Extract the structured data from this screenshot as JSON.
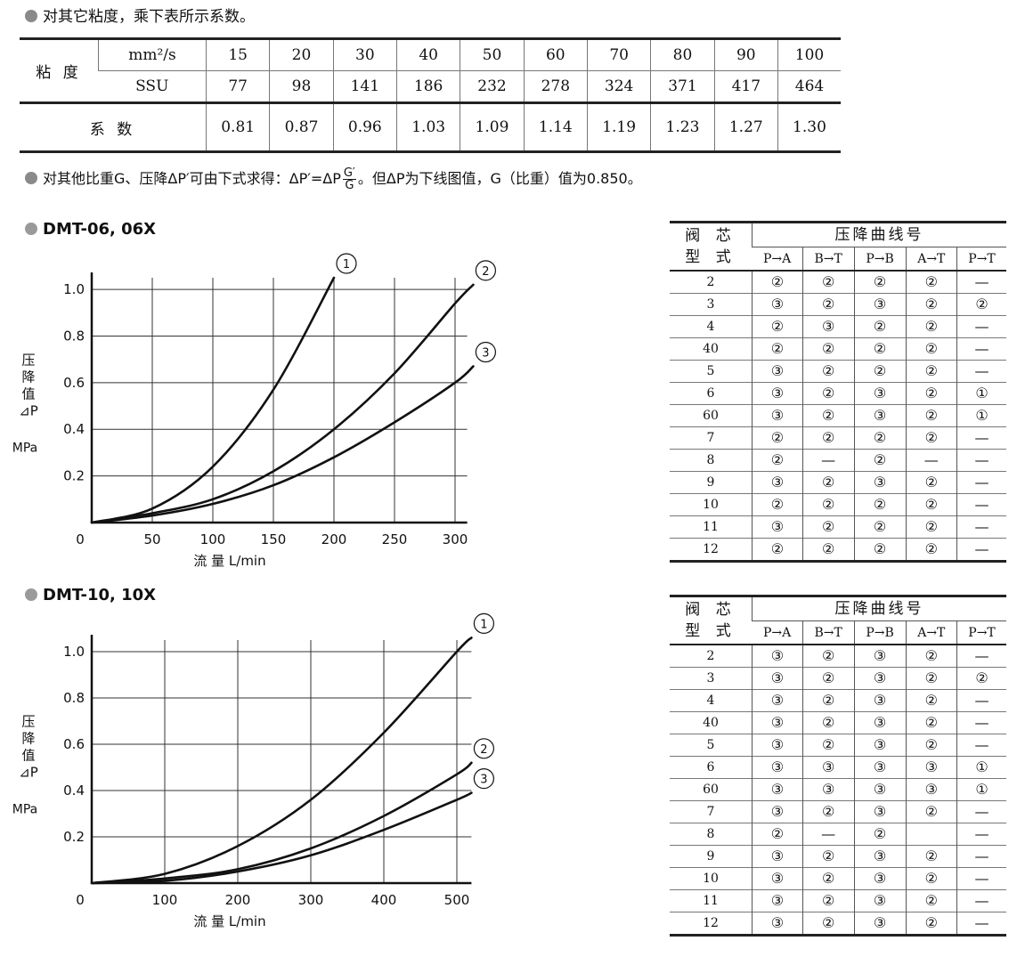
{
  "note_viscosity": "对其它粘度，乘下表所示系数。",
  "viscosity_table": {
    "viscosity_label": "粘 度",
    "unit_mm2s": "mm²/s",
    "unit_ssu": "SSU",
    "mm2s": [
      "15",
      "20",
      "30",
      "40",
      "50",
      "60",
      "70",
      "80",
      "90",
      "100"
    ],
    "ssu": [
      "77",
      "98",
      "141",
      "186",
      "232",
      "278",
      "324",
      "371",
      "417",
      "464"
    ],
    "coef_label": "系 数",
    "coef": [
      "0.81",
      "0.87",
      "0.96",
      "1.03",
      "1.09",
      "1.14",
      "1.19",
      "1.23",
      "1.27",
      "1.30"
    ]
  },
  "note_gravity": {
    "pre": "对其他比重G、压降ΔP′可由下式求得：ΔP′=ΔP",
    "frac_num": "G′",
    "frac_den": "G",
    "post": "。但ΔP为下线图值，G（比重）值为0.850。"
  },
  "chart_data": [
    {
      "type": "line",
      "title": "DMT-06, 06X",
      "xlabel": "流 量  L/min",
      "ylabel_lines": [
        "压",
        "降",
        "值",
        "⊿P"
      ],
      "ylabel_unit": "MPa",
      "origin_label": "0",
      "xlim": [
        0,
        310
      ],
      "ylim": [
        0,
        1.05
      ],
      "xticks": [
        50,
        100,
        150,
        200,
        250,
        300
      ],
      "yticks": [
        0.2,
        0.4,
        0.6,
        0.8,
        1.0
      ],
      "xtick_labels": [
        "50",
        "100",
        "150",
        "200",
        "250",
        "300"
      ],
      "ytick_labels": [
        "0.2",
        "0.4",
        "0.6",
        "0.8",
        "1.0"
      ],
      "grid": true,
      "series": [
        {
          "name": "①",
          "x": [
            0,
            50,
            100,
            150,
            200
          ],
          "y": [
            0,
            0.06,
            0.24,
            0.57,
            1.05
          ]
        },
        {
          "name": "②",
          "x": [
            0,
            50,
            100,
            150,
            200,
            250,
            300,
            315
          ],
          "y": [
            0,
            0.04,
            0.1,
            0.22,
            0.4,
            0.64,
            0.94,
            1.02
          ]
        },
        {
          "name": "③",
          "x": [
            0,
            50,
            100,
            150,
            200,
            250,
            300,
            315
          ],
          "y": [
            0,
            0.03,
            0.08,
            0.16,
            0.28,
            0.43,
            0.6,
            0.67
          ]
        }
      ]
    },
    {
      "type": "line",
      "title": "DMT-10, 10X",
      "xlabel": "流 量  L/min",
      "ylabel_lines": [
        "压",
        "降",
        "值",
        "⊿P"
      ],
      "ylabel_unit": "MPa",
      "origin_label": "0",
      "xlim": [
        0,
        520
      ],
      "ylim": [
        0,
        1.05
      ],
      "xticks": [
        100,
        200,
        300,
        400,
        500
      ],
      "yticks": [
        0.2,
        0.4,
        0.6,
        0.8,
        1.0
      ],
      "xtick_labels": [
        "100",
        "200",
        "300",
        "400",
        "500"
      ],
      "ytick_labels": [
        "0.2",
        "0.4",
        "0.6",
        "0.8",
        "1.0"
      ],
      "grid": true,
      "series": [
        {
          "name": "①",
          "x": [
            0,
            100,
            200,
            300,
            400,
            500,
            520
          ],
          "y": [
            0,
            0.04,
            0.16,
            0.36,
            0.65,
            1.0,
            1.06
          ]
        },
        {
          "name": "②",
          "x": [
            0,
            100,
            200,
            300,
            400,
            500,
            520
          ],
          "y": [
            0,
            0.02,
            0.06,
            0.15,
            0.29,
            0.47,
            0.52
          ]
        },
        {
          "name": "③",
          "x": [
            0,
            100,
            200,
            300,
            400,
            500,
            520
          ],
          "y": [
            0,
            0.01,
            0.05,
            0.12,
            0.23,
            0.36,
            0.39
          ]
        }
      ]
    }
  ],
  "spool_tables": [
    {
      "head_spool": [
        "阀 芯",
        "型 式"
      ],
      "head_curve": "压降曲线号",
      "columns": [
        "P→A",
        "B→T",
        "P→B",
        "A→T",
        "P→T"
      ],
      "rows": [
        {
          "type": "2",
          "vals": [
            "②",
            "②",
            "②",
            "②",
            "—"
          ]
        },
        {
          "type": "3",
          "vals": [
            "③",
            "②",
            "③",
            "②",
            "②"
          ]
        },
        {
          "type": "4",
          "vals": [
            "②",
            "③",
            "②",
            "②",
            "—"
          ]
        },
        {
          "type": "40",
          "vals": [
            "②",
            "②",
            "②",
            "②",
            "—"
          ]
        },
        {
          "type": "5",
          "vals": [
            "③",
            "②",
            "②",
            "②",
            "—"
          ]
        },
        {
          "type": "6",
          "vals": [
            "③",
            "②",
            "③",
            "②",
            "①"
          ]
        },
        {
          "type": "60",
          "vals": [
            "③",
            "②",
            "③",
            "②",
            "①"
          ]
        },
        {
          "type": "7",
          "vals": [
            "②",
            "②",
            "②",
            "②",
            "—"
          ]
        },
        {
          "type": "8",
          "vals": [
            "②",
            "—",
            "②",
            "—",
            "—"
          ]
        },
        {
          "type": "9",
          "vals": [
            "③",
            "②",
            "③",
            "②",
            "—"
          ]
        },
        {
          "type": "10",
          "vals": [
            "②",
            "②",
            "②",
            "②",
            "—"
          ]
        },
        {
          "type": "11",
          "vals": [
            "③",
            "②",
            "②",
            "②",
            "—"
          ]
        },
        {
          "type": "12",
          "vals": [
            "②",
            "②",
            "②",
            "②",
            "—"
          ]
        }
      ]
    },
    {
      "head_spool": [
        "阀 芯",
        "型 式"
      ],
      "head_curve": "压降曲线号",
      "columns": [
        "P→A",
        "B→T",
        "P→B",
        "A→T",
        "P→T"
      ],
      "rows": [
        {
          "type": "2",
          "vals": [
            "③",
            "②",
            "③",
            "②",
            "—"
          ]
        },
        {
          "type": "3",
          "vals": [
            "③",
            "②",
            "③",
            "②",
            "②"
          ]
        },
        {
          "type": "4",
          "vals": [
            "③",
            "②",
            "③",
            "②",
            "—"
          ]
        },
        {
          "type": "40",
          "vals": [
            "③",
            "②",
            "③",
            "②",
            "—"
          ]
        },
        {
          "type": "5",
          "vals": [
            "③",
            "②",
            "③",
            "②",
            "—"
          ]
        },
        {
          "type": "6",
          "vals": [
            "③",
            "③",
            "③",
            "③",
            "①"
          ]
        },
        {
          "type": "60",
          "vals": [
            "③",
            "③",
            "③",
            "③",
            "①"
          ]
        },
        {
          "type": "7",
          "vals": [
            "③",
            "②",
            "③",
            "②",
            "—"
          ]
        },
        {
          "type": "8",
          "vals": [
            "②",
            "—",
            "②",
            "",
            "—"
          ]
        },
        {
          "type": "9",
          "vals": [
            "③",
            "②",
            "③",
            "②",
            "—"
          ]
        },
        {
          "type": "10",
          "vals": [
            "③",
            "②",
            "③",
            "②",
            "—"
          ]
        },
        {
          "type": "11",
          "vals": [
            "③",
            "②",
            "③",
            "②",
            "—"
          ]
        },
        {
          "type": "12",
          "vals": [
            "③",
            "②",
            "③",
            "②",
            "—"
          ]
        }
      ]
    }
  ]
}
